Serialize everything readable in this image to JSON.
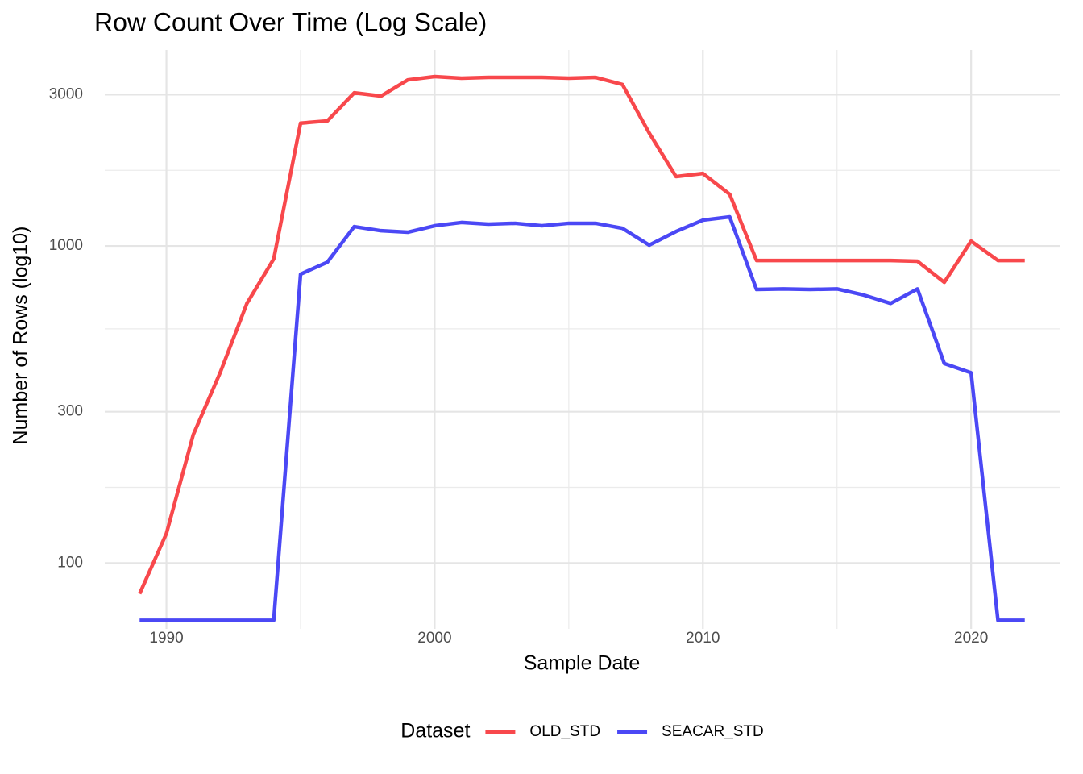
{
  "chart_data": {
    "type": "line",
    "title": "Row Count Over Time (Log Scale)",
    "x_label": "Sample Date",
    "y_label": "Number of Rows (log10)",
    "log_y": true,
    "grid": true,
    "legend_title": "Dataset",
    "legend_position": "bottom",
    "x": [
      1989,
      1990,
      1991,
      1992,
      1993,
      1994,
      1995,
      1996,
      1997,
      1998,
      1999,
      2000,
      2001,
      2002,
      2003,
      2004,
      2005,
      2006,
      2007,
      2008,
      2009,
      2010,
      2011,
      2012,
      2013,
      2014,
      2015,
      2016,
      2017,
      2018,
      2019,
      2020,
      2021,
      2022
    ],
    "series": [
      {
        "name": "OLD_STD",
        "color": "#f8484c",
        "values": [
          80,
          124,
          254,
          398,
          659,
          910,
          2440,
          2480,
          3040,
          2970,
          3340,
          3420,
          3380,
          3400,
          3400,
          3400,
          3380,
          3400,
          3230,
          2270,
          1655,
          1693,
          1455,
          900,
          900,
          900,
          900,
          900,
          900,
          895,
          768,
          1036,
          900,
          900
        ]
      },
      {
        "name": "SEACAR_STD",
        "color": "#4b48f5",
        "values": [
          66,
          66,
          66,
          66,
          66,
          66,
          815,
          889,
          1151,
          1117,
          1105,
          1158,
          1186,
          1172,
          1179,
          1158,
          1179,
          1179,
          1137,
          1006,
          1111,
          1206,
          1235,
          729,
          732,
          729,
          732,
          700,
          659,
          732,
          426,
          398,
          66,
          66
        ]
      }
    ],
    "xlim": [
      1987.7,
      2023.3
    ],
    "xticks": [
      1990,
      2000,
      2010,
      2020
    ],
    "ylim": [
      62,
      4150
    ],
    "yticks": [
      100,
      300,
      1000,
      3000
    ]
  }
}
